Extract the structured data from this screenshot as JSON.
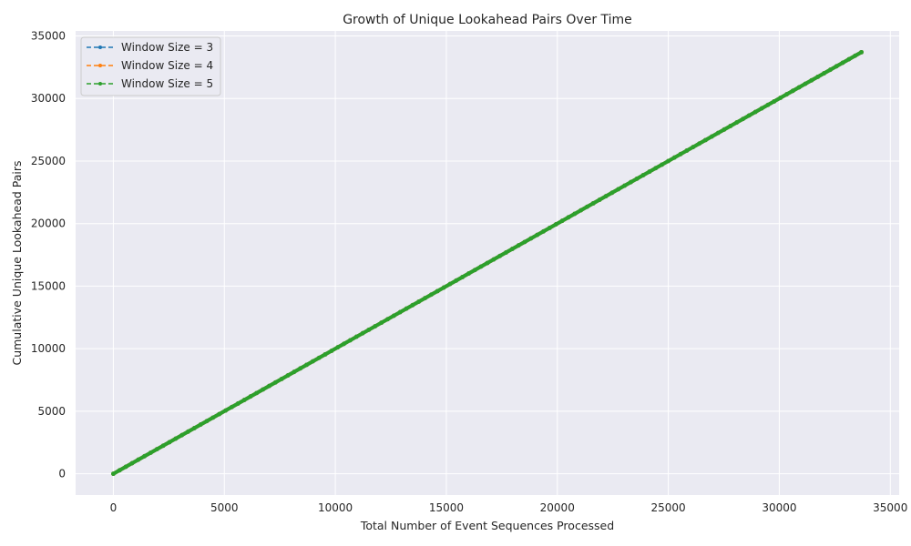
{
  "chart_data": {
    "type": "line",
    "title": "Growth of Unique Lookahead Pairs Over Time",
    "xlabel": "Total Number of Event Sequences Processed",
    "ylabel": "Cumulative Unique Lookahead Pairs",
    "xlim": [
      -1700,
      35400
    ],
    "ylim": [
      -1700,
      35400
    ],
    "xticks": [
      0,
      5000,
      10000,
      15000,
      20000,
      25000,
      30000,
      35000
    ],
    "yticks": [
      0,
      5000,
      10000,
      15000,
      20000,
      25000,
      30000,
      35000
    ],
    "grid": true,
    "legend_position": "upper-left",
    "series": [
      {
        "name": "Window Size = 3",
        "color": "#1f77b4",
        "line_style": "dashed",
        "marker": "dot",
        "x": [
          0,
          33700
        ],
        "y": [
          0,
          33700
        ]
      },
      {
        "name": "Window Size = 4",
        "color": "#ff7f0e",
        "line_style": "dashed",
        "marker": "dot",
        "x": [
          0,
          33700
        ],
        "y": [
          0,
          33700
        ]
      },
      {
        "name": "Window Size = 5",
        "color": "#2ca02c",
        "line_style": "dashed",
        "marker": "dot",
        "x": [
          0,
          33700
        ],
        "y": [
          0,
          33700
        ]
      }
    ]
  }
}
